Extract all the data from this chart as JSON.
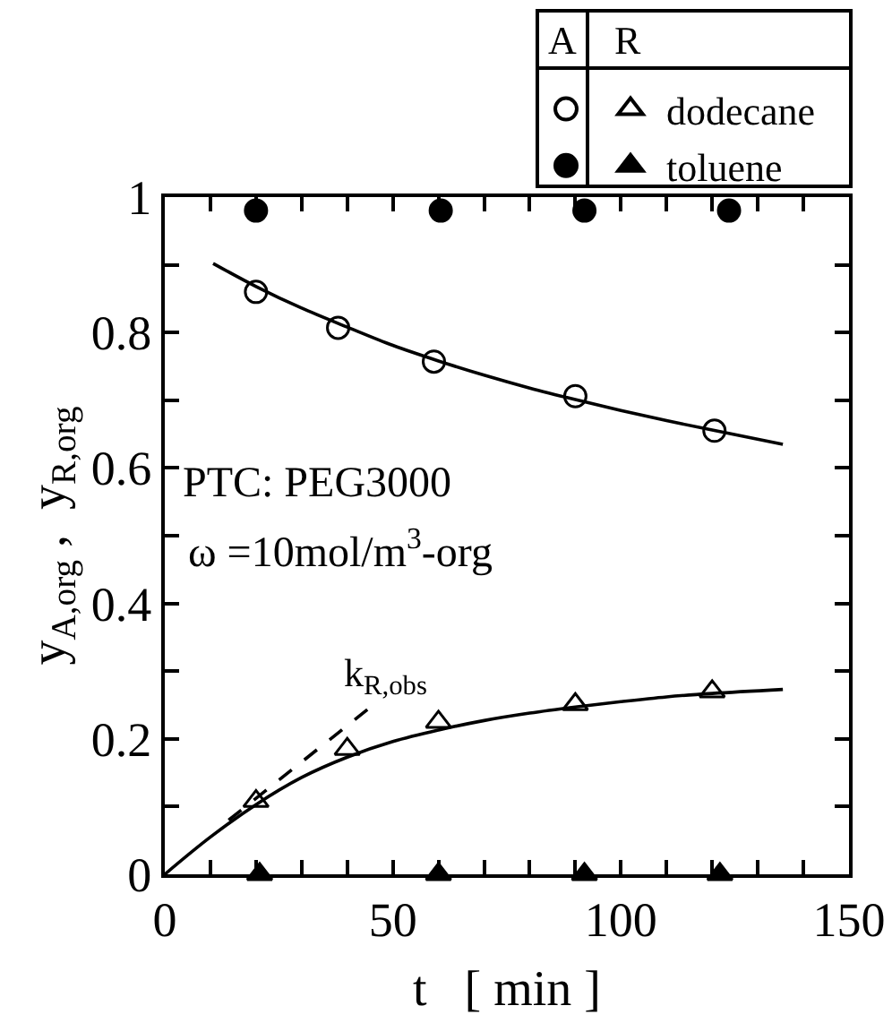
{
  "chart_data": {
    "type": "scatter",
    "xlabel": "t   [ min ]",
    "ylabel": "y$_{A,org}$ ,  y$_{R,org}$",
    "xlim": [
      0,
      150
    ],
    "ylim": [
      0,
      1
    ],
    "xticks": [
      0,
      {
        "value": 10,
        "label": null
      },
      {
        "value": 20,
        "label": null
      },
      {
        "value": 30,
        "label": null
      },
      {
        "value": 40,
        "label": null
      },
      50,
      {
        "value": 60,
        "label": null
      },
      {
        "value": 70,
        "label": null
      },
      {
        "value": 80,
        "label": null
      },
      {
        "value": 90,
        "label": null
      },
      100,
      {
        "value": 110,
        "label": null
      },
      {
        "value": 120,
        "label": null
      },
      {
        "value": 130,
        "label": null
      },
      {
        "value": 140,
        "label": null
      },
      150
    ],
    "yticks": [
      0,
      {
        "value": 0.1,
        "label": null
      },
      0.2,
      {
        "value": 0.3,
        "label": null
      },
      0.4,
      {
        "value": 0.5,
        "label": null
      },
      0.6,
      {
        "value": 0.7,
        "label": null
      },
      0.8,
      {
        "value": 0.9,
        "label": null
      },
      1
    ],
    "legend": "top right",
    "series": [
      {
        "marker": "circle-open",
        "color": "#000000",
        "x": [
          20,
          38,
          59,
          90,
          120.5
        ],
        "values": [
          0.86,
          0.807,
          0.757,
          0.706,
          0.655
        ]
      },
      {
        "marker": "circle",
        "color": "#000000",
        "x": [
          20,
          60.5,
          92,
          123.7
        ],
        "values": [
          0.98,
          0.98,
          0.98,
          0.98
        ]
      },
      {
        "name": "dodecane",
        "marker": "triangle-open",
        "color": "#000000",
        "x": [
          20,
          40,
          60,
          90,
          120
        ],
        "values": [
          0.108,
          0.185,
          0.225,
          0.251,
          0.27
        ]
      },
      {
        "name": "toluene",
        "marker": "triangle",
        "color": "#000000",
        "x": [
          20.8,
          60,
          92,
          121.7
        ],
        "values": [
          0,
          0,
          0,
          0
        ]
      },
      {
        "type": "line",
        "marker": "none",
        "line_style": "solid",
        "color": "#000000",
        "x": [
          10.6,
          20,
          30,
          40,
          50,
          60,
          70,
          80,
          90,
          100,
          110,
          120,
          135.5
        ],
        "values": [
          0.902,
          0.868,
          0.836,
          0.808,
          0.781,
          0.758,
          0.737,
          0.718,
          0.701,
          0.685,
          0.67,
          0.656,
          0.635
        ]
      },
      {
        "type": "line",
        "marker": "none",
        "line_style": "solid",
        "color": "#000000",
        "x": [
          0,
          10,
          20,
          30,
          40,
          50,
          60,
          70,
          80,
          90,
          100,
          110,
          120,
          135.5
        ],
        "values": [
          0,
          0.055,
          0.103,
          0.143,
          0.173,
          0.196,
          0.213,
          0.227,
          0.238,
          0.247,
          0.255,
          0.262,
          0.267,
          0.273
        ]
      },
      {
        "type": "line",
        "marker": "none",
        "line_style": "dashed",
        "color": "#000000",
        "x": [
          14,
          45.5
        ],
        "values": [
          0.08,
          0.249
        ]
      }
    ],
    "annotations": [
      "A",
      "R",
      "PTC: PEG3000",
      "ω =10mol/m$^{3}$-org",
      "k$_{R,obs}$"
    ]
  }
}
